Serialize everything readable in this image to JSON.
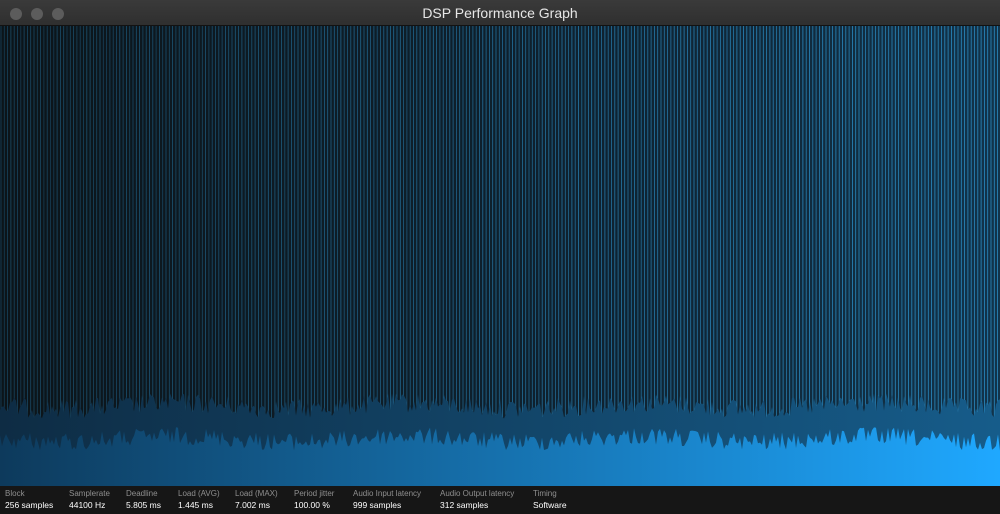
{
  "window": {
    "title": "DSP Performance Graph"
  },
  "colors": {
    "bar_fill_left": "#0d3a5c",
    "bar_fill_right": "#1fa8ff",
    "spike_line": "#2f9bd8",
    "background_dark": "#0c1419"
  },
  "stats": [
    {
      "id": "block",
      "label": "Block",
      "value": "256 samples"
    },
    {
      "id": "samplerate",
      "label": "Samplerate",
      "value": "44100 Hz"
    },
    {
      "id": "deadline",
      "label": "Deadline",
      "value": "5.805 ms"
    },
    {
      "id": "load-avg",
      "label": "Load (AVG)",
      "value": "1.445 ms"
    },
    {
      "id": "load-max",
      "label": "Load (MAX)",
      "value": "7.002 ms"
    },
    {
      "id": "period-jitter",
      "label": "Period jitter",
      "value": "100.00 %"
    },
    {
      "id": "audio-input-latency",
      "label": "Audio Input latency",
      "value": "999 samples"
    },
    {
      "id": "audio-output-latency",
      "label": "Audio Output latency",
      "value": "312 samples"
    },
    {
      "id": "timing",
      "label": "Timing",
      "value": "Software"
    }
  ]
}
